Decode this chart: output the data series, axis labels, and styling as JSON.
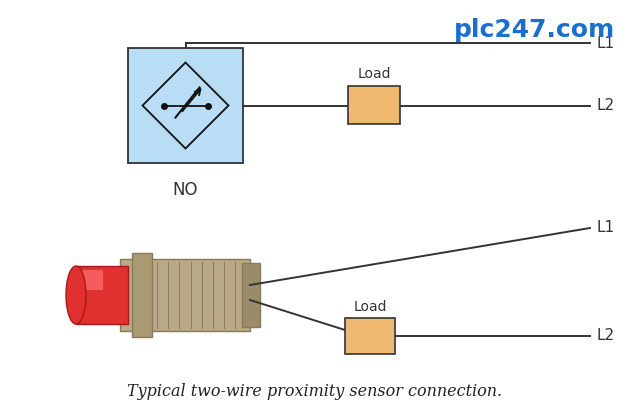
{
  "bg_color": "#ffffff",
  "title_text": "Typical two-wire proximity sensor connection.",
  "title_fontsize": 11.5,
  "watermark_text": "plc247.com",
  "watermark_color": "#1a6fcc",
  "watermark_fontsize": 18,
  "no_label": "NO",
  "l1_label": "L1",
  "l2_label": "L2",
  "load_label": "Load",
  "sensor_box_color": "#b8ddf5",
  "load_box_color": "#f0b870",
  "line_color": "#333333",
  "symbol_color": "#111111",
  "body_color": "#b8aa88",
  "body_edge": "#8a7a58",
  "tip_color": "#e03030",
  "tip_edge": "#aa1818",
  "tip_highlight": "#ff7070"
}
